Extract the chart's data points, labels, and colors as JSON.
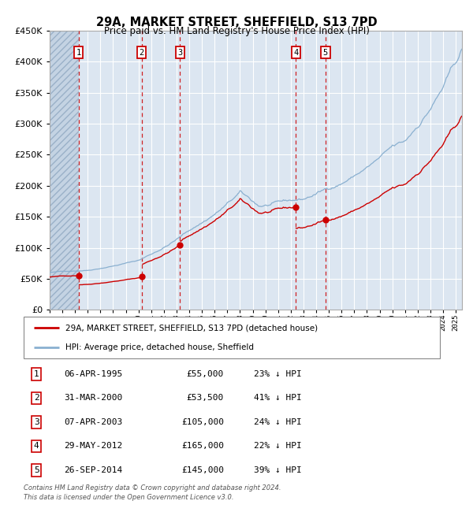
{
  "title1": "29A, MARKET STREET, SHEFFIELD, S13 7PD",
  "title2": "Price paid vs. HM Land Registry's House Price Index (HPI)",
  "legend_red": "29A, MARKET STREET, SHEFFIELD, S13 7PD (detached house)",
  "legend_blue": "HPI: Average price, detached house, Sheffield",
  "footer1": "Contains HM Land Registry data © Crown copyright and database right 2024.",
  "footer2": "This data is licensed under the Open Government Licence v3.0.",
  "transactions": [
    {
      "num": 1,
      "date": "06-APR-1995",
      "price": 55000,
      "pct": "23%",
      "dir": "↓",
      "year_x": 1995.27
    },
    {
      "num": 2,
      "date": "31-MAR-2000",
      "price": 53500,
      "pct": "41%",
      "dir": "↓",
      "year_x": 2000.25
    },
    {
      "num": 3,
      "date": "07-APR-2003",
      "price": 105000,
      "pct": "24%",
      "dir": "↓",
      "year_x": 2003.27
    },
    {
      "num": 4,
      "date": "29-MAY-2012",
      "price": 165000,
      "pct": "22%",
      "dir": "↓",
      "year_x": 2012.41
    },
    {
      "num": 5,
      "date": "26-SEP-2014",
      "price": 145000,
      "pct": "39%",
      "dir": "↓",
      "year_x": 2014.73
    }
  ],
  "ylim": [
    0,
    450000
  ],
  "xlim_start": 1993.0,
  "xlim_end": 2025.5,
  "hatch_end": 1995.27,
  "bg_color": "#dce6f1",
  "red_color": "#cc0000",
  "blue_color": "#8ab0d0",
  "grid_color": "#ffffff",
  "hatch_color": "#c4d3e3"
}
